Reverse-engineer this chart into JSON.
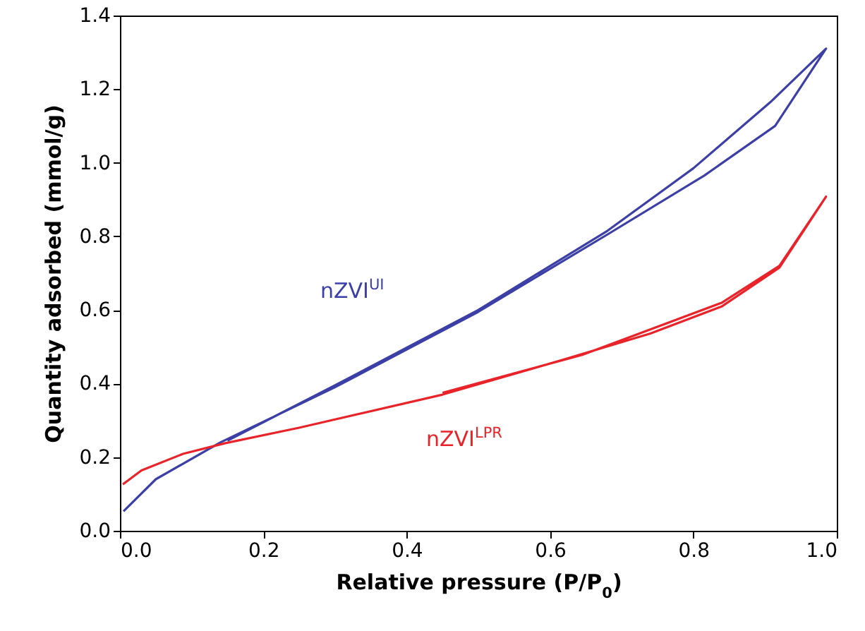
{
  "chart_data": {
    "type": "line",
    "xlabel": "Relative pressure (P/P$_{0}$)",
    "ylabel": "Quantity adsorbed (mmol/g)",
    "xlim": [
      0,
      1
    ],
    "ylim": [
      0,
      1.4
    ],
    "xticks": [
      {
        "value": 0,
        "label": "0.0"
      },
      {
        "value": 0.2,
        "label": "0.2"
      },
      {
        "value": 0.4,
        "label": "0.4"
      },
      {
        "value": 0.6,
        "label": "0.6"
      },
      {
        "value": 0.8,
        "label": "0.8"
      },
      {
        "value": 1,
        "label": "1.0"
      }
    ],
    "yticks": [
      {
        "value": 0,
        "label": "0.0"
      },
      {
        "value": 0.2,
        "label": "0.2"
      },
      {
        "value": 0.4,
        "label": "0.4"
      },
      {
        "value": 0.6,
        "label": "0.6"
      },
      {
        "value": 0.8,
        "label": "0.8"
      },
      {
        "value": 1,
        "label": "1.0"
      },
      {
        "value": 1.2,
        "label": "1.2"
      },
      {
        "value": 1.4,
        "label": "1.4"
      }
    ],
    "grid": false,
    "marker": "none",
    "line_style": "solid",
    "series": [
      {
        "name": "nZVI$^{UI}$",
        "color": "#3b3fa6",
        "x": [
          0.005,
          0.05,
          0.14,
          0.3,
          0.5,
          0.68,
          0.815,
          0.914,
          0.985,
          0.907,
          0.8,
          0.68,
          0.5,
          0.3,
          0.15
        ],
        "values": [
          0.053,
          0.14,
          0.24,
          0.39,
          0.595,
          0.805,
          0.965,
          1.1,
          1.31,
          1.164,
          0.985,
          0.815,
          0.6,
          0.395,
          0.245
        ]
      },
      {
        "name": "nZVI$^{LPR}$",
        "color": "#e8242a",
        "x": [
          0.004,
          0.03,
          0.088,
          0.147,
          0.25,
          0.45,
          0.61,
          0.74,
          0.84,
          0.92,
          0.985,
          0.92,
          0.84,
          0.645,
          0.45
        ],
        "values": [
          0.126,
          0.164,
          0.209,
          0.238,
          0.28,
          0.37,
          0.46,
          0.536,
          0.61,
          0.715,
          0.908,
          0.72,
          0.62,
          0.478,
          0.375
        ]
      }
    ]
  }
}
